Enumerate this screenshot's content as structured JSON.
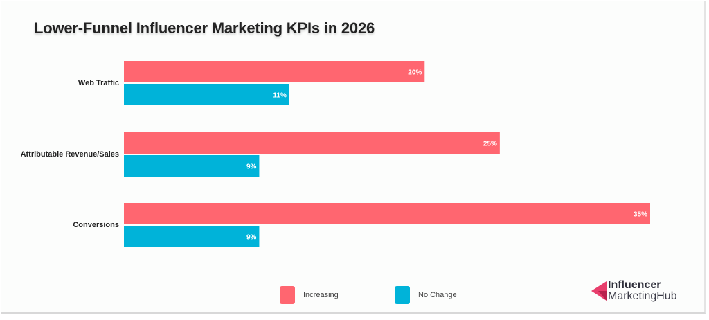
{
  "chart_data": {
    "type": "bar",
    "orientation": "horizontal",
    "title": "Lower-Funnel Influencer Marketing KPIs in 2026",
    "categories": [
      "Web Traffic",
      "Attributable Revenue/Sales",
      "Conversions"
    ],
    "series": [
      {
        "name": "Increasing",
        "color": "#ff6670",
        "values": [
          20,
          25,
          35
        ],
        "labels": [
          "20%",
          "25%",
          "35%"
        ]
      },
      {
        "name": "No Change",
        "color": "#00b3d9",
        "values": [
          11,
          9,
          9
        ],
        "labels": [
          "11%",
          "9%",
          "9%"
        ]
      }
    ],
    "xlabel": "",
    "ylabel": "",
    "xlim": [
      0,
      35
    ],
    "grid": false,
    "legend_position": "bottom-center",
    "value_unit": "%"
  },
  "legend": {
    "items": [
      {
        "label": "Increasing",
        "color": "#ff6670"
      },
      {
        "label": "No Change",
        "color": "#00b3d9"
      }
    ]
  },
  "branding": {
    "line1": "Influencer",
    "line2": "MarketingHub",
    "logo_color": "#e83e6c"
  }
}
